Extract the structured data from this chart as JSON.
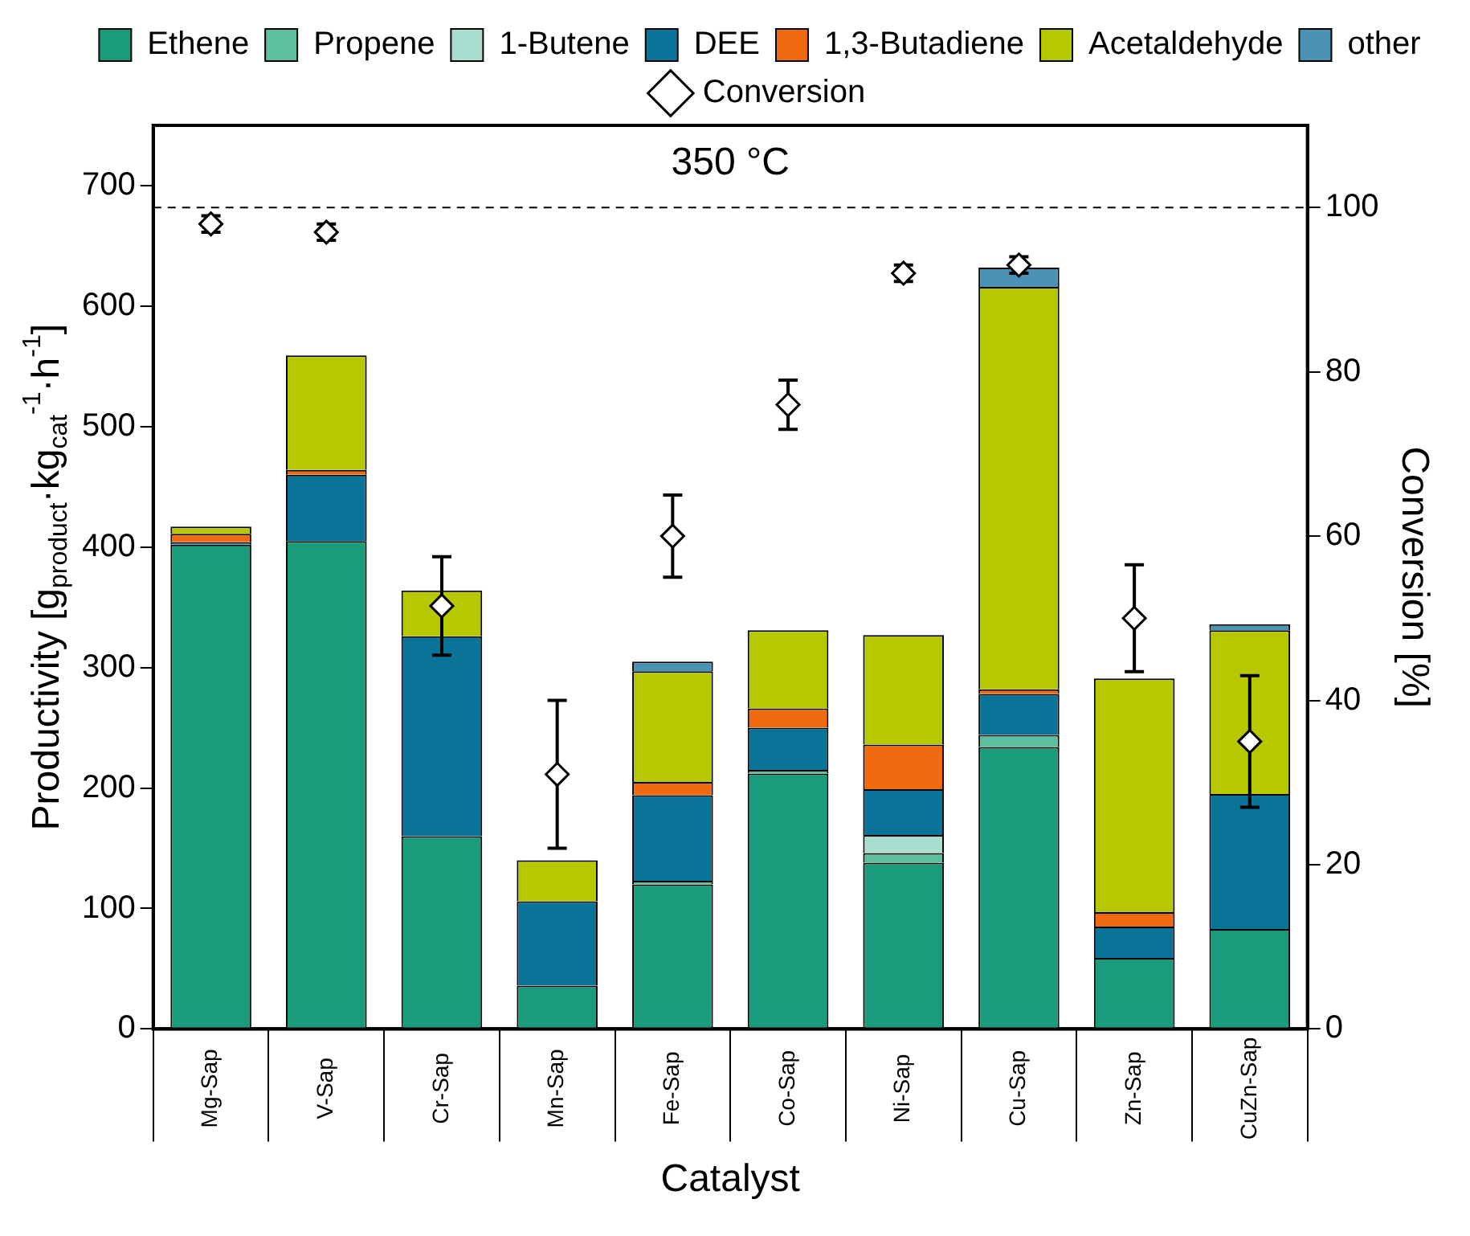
{
  "chart_data": {
    "type": "bar",
    "stacked": true,
    "xlabel": "Catalyst",
    "ylabel": "Productivity [g$_{product}$·kg$_{cat}$$^{-1}$·h$^{-1}$]",
    "y2label": "Conversion [%]",
    "categories": [
      "Mg-Sap",
      "V-Sap",
      "Cr-Sap",
      "Mn-Sap",
      "Fe-Sap",
      "Co-Sap",
      "Ni-Sap",
      "Cu-Sap",
      "Zn-Sap",
      "CuZn-Sap"
    ],
    "series": [
      {
        "name": "Ethene",
        "color": "#1a9c7c",
        "values": [
          402,
          405,
          160,
          36,
          120,
          212,
          138,
          234,
          59,
          83
        ]
      },
      {
        "name": "Propene",
        "color": "#5cbfa0",
        "values": [
          0,
          0,
          0,
          0,
          3,
          3,
          8,
          10,
          0,
          0
        ]
      },
      {
        "name": "1-Butene",
        "color": "#a8ddd0",
        "values": [
          0,
          0,
          0,
          0,
          0,
          0,
          15,
          0,
          0,
          0
        ]
      },
      {
        "name": "DEE",
        "color": "#0a7398",
        "values": [
          2,
          55,
          166,
          70,
          71,
          35,
          38,
          34,
          26,
          112
        ]
      },
      {
        "name": "1,3-Butadiene",
        "color": "#f06b10",
        "values": [
          7,
          4,
          0,
          0,
          11,
          16,
          37,
          4,
          12,
          0
        ]
      },
      {
        "name": "Acetaldehyde",
        "color": "#b7c800",
        "values": [
          6,
          95,
          38,
          34,
          92,
          65,
          91,
          334,
          194,
          136
        ]
      },
      {
        "name": "other",
        "color": "#4a93b4",
        "values": [
          0,
          0,
          0,
          0,
          8,
          0,
          0,
          16,
          0,
          5
        ]
      },
      {
        "name": "Conversion",
        "type": "scatter",
        "axis": "y2",
        "marker": "diamond",
        "color": "#000000",
        "x": [
          "Mg-Sap",
          "V-Sap",
          "Cr-Sap",
          "Mn-Sap",
          "Fe-Sap",
          "Co-Sap",
          "Ni-Sap",
          "Cu-Sap",
          "Zn-Sap",
          "CuZn-Sap"
        ],
        "values": [
          98,
          97,
          51.5,
          31,
          60,
          76,
          92,
          93,
          50,
          35
        ],
        "errors": [
          1,
          1,
          6,
          9,
          5,
          3,
          1,
          1,
          6.5,
          8
        ]
      }
    ],
    "ylim": [
      0,
      750
    ],
    "yticks": [
      0,
      100,
      200,
      300,
      400,
      500,
      600,
      700
    ],
    "y2lim": [
      0,
      110
    ],
    "y2ticks": [
      0,
      20,
      40,
      60,
      80,
      100
    ],
    "ref_lines": [
      {
        "axis": "y2",
        "value": 100,
        "color": "#000000",
        "line_style": "dashed"
      }
    ],
    "annotations": [
      "350 °C"
    ],
    "grid": false,
    "legend": "top"
  }
}
